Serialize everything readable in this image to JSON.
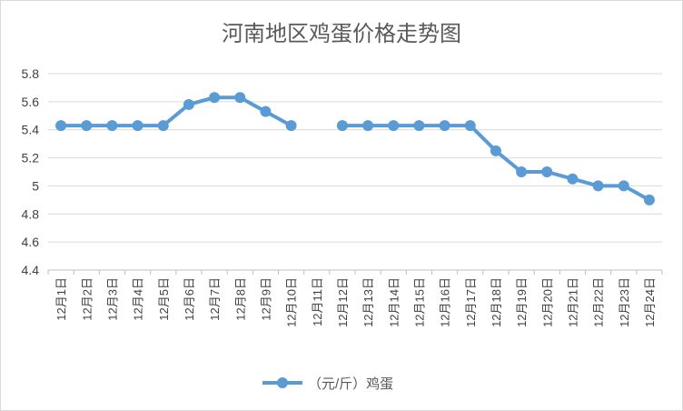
{
  "chart_data": {
    "type": "line",
    "title": "河南地区鸡蛋价格走势图",
    "xlabel": "",
    "ylabel": "",
    "ylim": [
      4.4,
      5.8
    ],
    "yticks": [
      "4.4",
      "4.6",
      "4.8",
      "5",
      "5.2",
      "5.4",
      "5.6",
      "5.8"
    ],
    "categories": [
      "12月1日",
      "12月2日",
      "12月3日",
      "12月4日",
      "12月5日",
      "12月6日",
      "12月7日",
      "12月8日",
      "12月9日",
      "12月10日",
      "12月11日",
      "12月12日",
      "12月13日",
      "12月14日",
      "12月15日",
      "12月16日",
      "12月17日",
      "12月18日",
      "12月19日",
      "12月20日",
      "12月21日",
      "12月22日",
      "12月23日",
      "12月24日"
    ],
    "series": [
      {
        "name": "（元/斤）鸡蛋",
        "color": "#5b9bd5",
        "values": [
          5.43,
          5.43,
          5.43,
          5.43,
          5.43,
          5.58,
          5.63,
          5.63,
          5.53,
          5.43,
          null,
          5.43,
          5.43,
          5.43,
          5.43,
          5.43,
          5.43,
          5.25,
          5.1,
          5.1,
          5.05,
          5.0,
          5.0,
          4.9
        ]
      }
    ],
    "grid": true,
    "legend": "bottom"
  }
}
